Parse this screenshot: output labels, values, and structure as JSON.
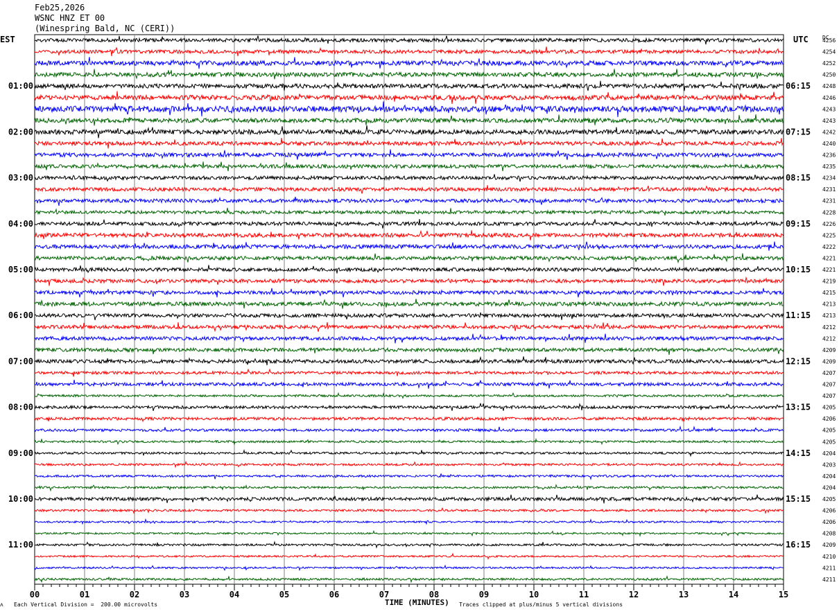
{
  "header": {
    "date": "Feb25,2026",
    "station": "WSNC HNZ ET 00",
    "location": "(Winespring Bald, NC (CERI))"
  },
  "left_axis_label": "EST",
  "right_axis_label": "UTC",
  "dc_label": "DC",
  "footer": {
    "corner_mark": "ᴧ",
    "vertical_division": "Each Vertical Division =  200.00 microvolts",
    "xlabel": "TIME (MINUTES)",
    "clip_note": "Traces clipped at plus/minus 5 vertical divisions"
  },
  "colors": {
    "trace_cycle": [
      "#000000",
      "#ff0000",
      "#0000ff",
      "#006400"
    ],
    "grid": "#808080"
  },
  "chart_data": {
    "type": "line",
    "title": "WSNC HNZ ET 00",
    "xlabel": "TIME (MINUTES)",
    "xlim": [
      0,
      15
    ],
    "x_ticks": [
      "00",
      "01",
      "02",
      "03",
      "04",
      "05",
      "06",
      "07",
      "08",
      "09",
      "10",
      "11",
      "12",
      "13",
      "14",
      "15"
    ],
    "est_hour_labels": [
      "01:00",
      "02:00",
      "03:00",
      "04:00",
      "05:00",
      "06:00",
      "07:00",
      "08:00",
      "09:00",
      "10:00",
      "11:00"
    ],
    "utc_hour_labels": [
      "06:15",
      "07:15",
      "08:15",
      "09:15",
      "10:15",
      "11:15",
      "12:15",
      "13:15",
      "14:15",
      "15:15",
      "16:15"
    ],
    "first_labeled_trace": 4,
    "labels_every_n_traces": 4,
    "dc_offsets": [
      "4256",
      "4254",
      "4252",
      "4250",
      "4248",
      "4246",
      "4243",
      "4243",
      "4242",
      "4240",
      "4236",
      "4235",
      "4234",
      "4231",
      "4231",
      "4228",
      "4226",
      "4225",
      "4222",
      "4221",
      "4221",
      "4219",
      "4215",
      "4213",
      "4213",
      "4212",
      "4212",
      "4209",
      "4209",
      "4207",
      "4207",
      "4207",
      "4205",
      "4206",
      "4205",
      "4205",
      "4204",
      "4203",
      "4204",
      "4204",
      "4205",
      "4206",
      "4206",
      "4208",
      "4209",
      "4210",
      "4211",
      "4211"
    ],
    "trace_amplitude_levels": [
      1.0,
      1.0,
      1.3,
      1.2,
      1.2,
      1.3,
      1.6,
      1.2,
      1.3,
      1.1,
      1.1,
      1.0,
      1.0,
      1.0,
      1.0,
      0.9,
      1.0,
      1.1,
      1.1,
      1.0,
      1.0,
      1.0,
      1.0,
      1.1,
      1.0,
      1.0,
      1.0,
      1.0,
      1.0,
      0.8,
      0.9,
      0.6,
      0.8,
      0.8,
      0.7,
      0.6,
      0.6,
      0.6,
      0.6,
      0.6,
      0.9,
      0.6,
      0.5,
      0.5,
      0.6,
      0.5,
      0.5,
      0.6
    ],
    "vertical_division_microvolts": 200.0,
    "clip_divisions": 5
  }
}
